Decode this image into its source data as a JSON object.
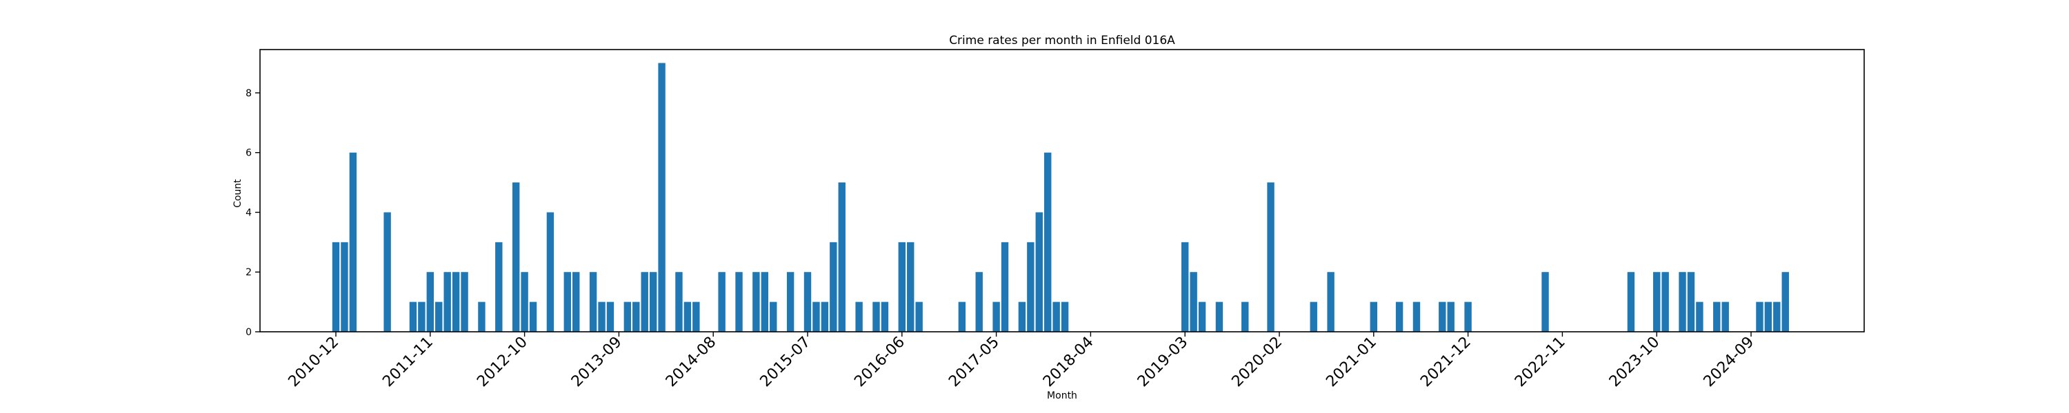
{
  "chart_data": {
    "type": "bar",
    "title": "Crime rates per month in Enfield 016A",
    "xlabel": "Month",
    "ylabel": "Count",
    "color": "#1f77b4",
    "ylim": [
      0,
      9.45
    ],
    "yticks": [
      0,
      2,
      4,
      6,
      8
    ],
    "xticks": [
      "2010-12",
      "2011-11",
      "2012-10",
      "2013-09",
      "2014-08",
      "2015-07",
      "2016-06",
      "2017-05",
      "2018-04",
      "2019-03",
      "2020-02",
      "2021-01",
      "2021-12",
      "2022-11",
      "2023-10",
      "2024-09"
    ],
    "categories": [
      "2010-12",
      "2011-01",
      "2011-02",
      "2011-06",
      "2011-09",
      "2011-10",
      "2011-11",
      "2011-12",
      "2012-01",
      "2012-02",
      "2012-03",
      "2012-05",
      "2012-07",
      "2012-09",
      "2012-10",
      "2012-11",
      "2013-01",
      "2013-03",
      "2013-04",
      "2013-06",
      "2013-07",
      "2013-08",
      "2013-10",
      "2013-11",
      "2013-12",
      "2014-01",
      "2014-02",
      "2014-04",
      "2014-05",
      "2014-06",
      "2014-09",
      "2014-11",
      "2015-01",
      "2015-02",
      "2015-03",
      "2015-05",
      "2015-07",
      "2015-08",
      "2015-09",
      "2015-10",
      "2015-11",
      "2016-01",
      "2016-03",
      "2016-04",
      "2016-06",
      "2016-07",
      "2016-08",
      "2017-01",
      "2017-03",
      "2017-05",
      "2017-06",
      "2017-08",
      "2017-09",
      "2017-10",
      "2017-11",
      "2017-12",
      "2018-01",
      "2019-03",
      "2019-04",
      "2019-05",
      "2019-07",
      "2019-10",
      "2020-01",
      "2020-06",
      "2020-08",
      "2021-01",
      "2021-04",
      "2021-06",
      "2021-09",
      "2021-10",
      "2021-12",
      "2022-09",
      "2023-07",
      "2023-10",
      "2023-11",
      "2024-01",
      "2024-02",
      "2024-03",
      "2024-05",
      "2024-06",
      "2024-10",
      "2024-11",
      "2024-12",
      "2025-01"
    ],
    "values": [
      3,
      3,
      6,
      4,
      1,
      1,
      2,
      1,
      2,
      2,
      2,
      1,
      3,
      5,
      2,
      1,
      4,
      2,
      2,
      2,
      1,
      1,
      1,
      1,
      2,
      2,
      9,
      2,
      1,
      1,
      2,
      2,
      2,
      2,
      1,
      2,
      2,
      1,
      1,
      3,
      5,
      1,
      1,
      1,
      3,
      3,
      1,
      1,
      2,
      1,
      3,
      1,
      3,
      4,
      6,
      1,
      1,
      3,
      2,
      1,
      1,
      1,
      5,
      1,
      2,
      1,
      1,
      1,
      1,
      1,
      1,
      2,
      2,
      2,
      2,
      2,
      2,
      1,
      1,
      1,
      1,
      1,
      1,
      2
    ]
  }
}
